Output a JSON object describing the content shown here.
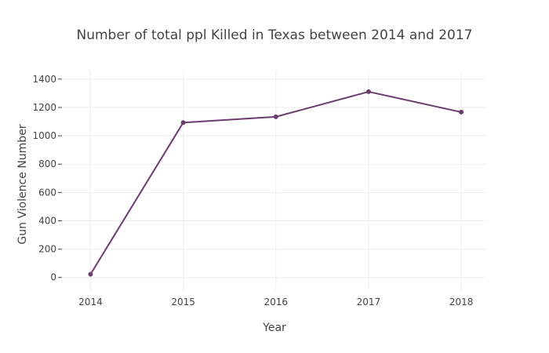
{
  "chart_data": {
    "type": "line",
    "title": "Number of total ppl Killed in Texas between 2014 and 2017",
    "xlabel": "Year",
    "ylabel": "Gun Violence Number",
    "x": [
      2014,
      2015,
      2016,
      2017,
      2018
    ],
    "x_tick_labels": [
      "2014",
      "2015",
      "2016",
      "2017",
      "2018"
    ],
    "series": [
      {
        "values": [
          23,
          1093,
          1134,
          1311,
          1167
        ]
      }
    ],
    "ylim": [
      -90,
      1460
    ],
    "xlim": [
      2013.7,
      2018.27
    ],
    "y_ticks": [
      0,
      200,
      400,
      600,
      800,
      1000,
      1200,
      1400
    ],
    "y_tick_labels": [
      "0",
      "200",
      "400",
      "600",
      "800",
      "1000",
      "1200",
      "1400"
    ],
    "grid": true,
    "legend": "none",
    "colors": {
      "line": "#6a3d6e",
      "grid": "#eeeeee",
      "text": "#444444"
    }
  }
}
